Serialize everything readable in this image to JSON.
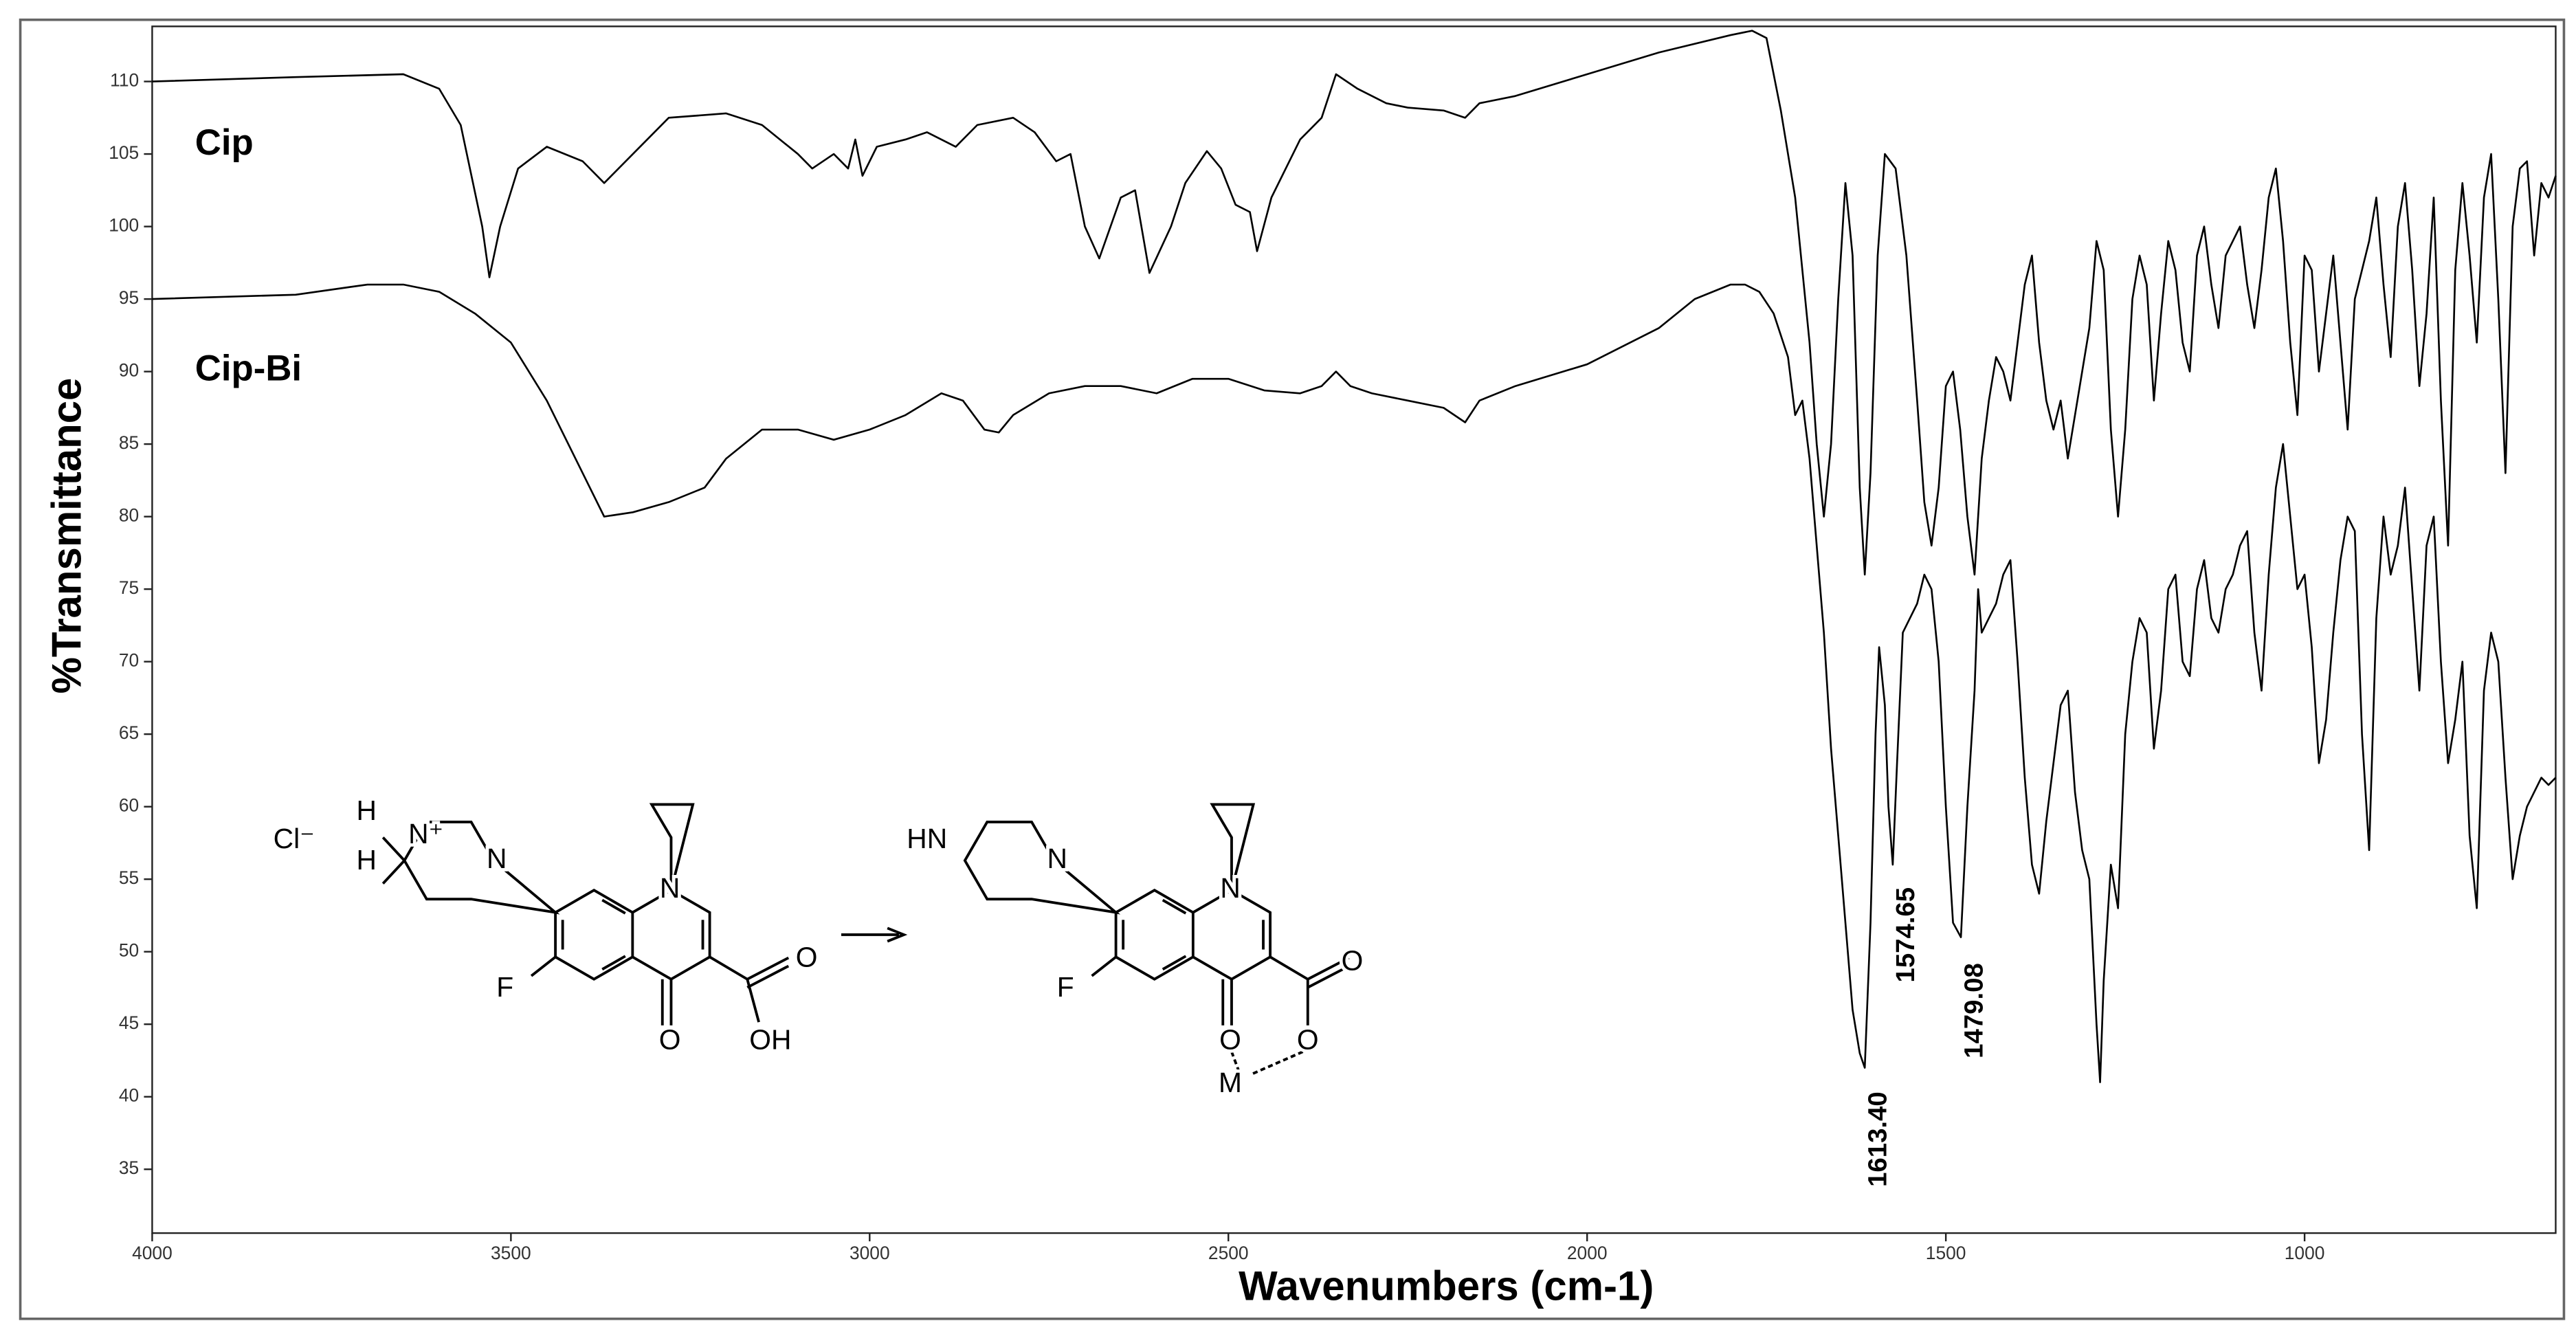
{
  "chart_data": {
    "type": "line",
    "xlabel": "Wavenumbers (cm-1)",
    "ylabel": "%Transmittance",
    "xlim": [
      4000,
      650
    ],
    "ylim": [
      30.6,
      113.8
    ],
    "xticks": [
      4000,
      3500,
      3000,
      2500,
      2000,
      1500,
      1000
    ],
    "yticks": [
      35,
      40,
      45,
      50,
      55,
      60,
      65,
      70,
      75,
      80,
      85,
      90,
      95,
      100,
      105,
      110
    ],
    "series": [
      {
        "name": "Cip",
        "color": "#000000",
        "x": [
          4000,
          3800,
          3650,
          3600,
          3570,
          3540,
          3530,
          3515,
          3490,
          3450,
          3400,
          3370,
          3330,
          3280,
          3200,
          3150,
          3100,
          3080,
          3050,
          3030,
          3020,
          3010,
          2990,
          2950,
          2920,
          2880,
          2850,
          2800,
          2770,
          2740,
          2720,
          2700,
          2680,
          2650,
          2630,
          2610,
          2580,
          2560,
          2530,
          2510,
          2490,
          2470,
          2460,
          2440,
          2400,
          2370,
          2350,
          2320,
          2280,
          2250,
          2200,
          2170,
          2150,
          2100,
          2000,
          1900,
          1800,
          1770,
          1750,
          1730,
          1710,
          1700,
          1690,
          1680,
          1670,
          1660,
          1650,
          1640,
          1630,
          1620,
          1613,
          1605,
          1595,
          1585,
          1570,
          1555,
          1540,
          1530,
          1520,
          1510,
          1500,
          1490,
          1480,
          1470,
          1460,
          1450,
          1440,
          1430,
          1420,
          1410,
          1400,
          1390,
          1380,
          1370,
          1360,
          1350,
          1340,
          1330,
          1320,
          1310,
          1300,
          1290,
          1280,
          1270,
          1260,
          1250,
          1240,
          1230,
          1220,
          1210,
          1200,
          1190,
          1180,
          1170,
          1160,
          1150,
          1140,
          1130,
          1120,
          1110,
          1100,
          1090,
          1080,
          1070,
          1060,
          1050,
          1040,
          1030,
          1020,
          1010,
          1000,
          990,
          980,
          970,
          960,
          950,
          940,
          930,
          920,
          910,
          900,
          890,
          880,
          870,
          860,
          850,
          840,
          830,
          820,
          810,
          800,
          790,
          780,
          770,
          760,
          750,
          740,
          730,
          720,
          710,
          700,
          690,
          680,
          670,
          660,
          650
        ],
        "values": [
          110,
          110.3,
          110.5,
          109.5,
          107,
          100,
          96.5,
          100,
          104,
          105.5,
          104.5,
          103,
          105,
          107.5,
          107.8,
          107,
          105,
          104,
          105,
          104,
          106,
          103.5,
          105.5,
          106,
          106.5,
          105.5,
          107,
          107.5,
          106.5,
          104.5,
          105,
          100,
          97.8,
          102,
          102.5,
          96.8,
          100,
          103,
          105.2,
          104,
          101.5,
          101,
          98.3,
          102,
          106,
          107.5,
          110.5,
          109.5,
          108.5,
          108.2,
          108,
          107.5,
          108.5,
          109,
          110.5,
          112,
          113.2,
          113.5,
          113,
          108,
          102,
          97,
          92,
          85,
          80,
          85,
          95,
          103,
          98,
          82,
          76,
          83,
          98,
          105,
          104,
          98,
          88,
          81,
          78,
          82,
          89,
          90,
          86,
          80,
          76,
          84,
          88,
          91,
          90,
          88,
          92,
          96,
          98,
          92,
          88,
          86,
          88,
          84,
          87,
          90,
          93,
          99,
          97,
          86,
          80,
          86,
          95,
          98,
          96,
          88,
          94,
          99,
          97,
          92,
          90,
          98,
          100,
          96,
          93,
          98,
          99,
          100,
          96,
          93,
          97,
          102,
          104,
          99,
          92,
          87,
          98,
          97,
          90,
          94,
          98,
          92,
          86,
          95,
          97,
          99,
          102,
          96,
          91,
          100,
          103,
          97,
          89,
          94,
          102,
          88,
          78,
          97,
          103,
          98,
          92,
          102,
          105,
          95,
          83,
          100,
          104,
          104.5,
          98,
          103,
          102,
          103.5
        ]
      },
      {
        "name": "Cip-Bi",
        "color": "#000000",
        "x": [
          4000,
          3800,
          3700,
          3650,
          3600,
          3550,
          3500,
          3450,
          3400,
          3370,
          3330,
          3280,
          3230,
          3200,
          3150,
          3100,
          3050,
          3000,
          2950,
          2900,
          2870,
          2840,
          2820,
          2800,
          2750,
          2700,
          2650,
          2600,
          2550,
          2500,
          2450,
          2400,
          2370,
          2350,
          2330,
          2300,
          2250,
          2200,
          2170,
          2150,
          2100,
          2000,
          1900,
          1850,
          1800,
          1780,
          1760,
          1740,
          1720,
          1710,
          1700,
          1690,
          1680,
          1670,
          1660,
          1650,
          1640,
          1630,
          1620,
          1613,
          1605,
          1598,
          1593,
          1585,
          1580,
          1574,
          1568,
          1560,
          1550,
          1540,
          1530,
          1520,
          1510,
          1500,
          1490,
          1479,
          1470,
          1460,
          1455,
          1450,
          1440,
          1430,
          1420,
          1410,
          1400,
          1390,
          1380,
          1370,
          1360,
          1350,
          1340,
          1330,
          1320,
          1310,
          1300,
          1290,
          1285,
          1280,
          1270,
          1260,
          1250,
          1240,
          1230,
          1220,
          1210,
          1200,
          1190,
          1180,
          1170,
          1160,
          1150,
          1140,
          1130,
          1120,
          1110,
          1100,
          1090,
          1080,
          1070,
          1060,
          1050,
          1040,
          1030,
          1020,
          1010,
          1000,
          990,
          980,
          970,
          960,
          950,
          940,
          930,
          920,
          910,
          900,
          890,
          880,
          870,
          860,
          850,
          840,
          830,
          820,
          810,
          800,
          790,
          780,
          770,
          760,
          750,
          740,
          730,
          720,
          710,
          700,
          690,
          680,
          670,
          660,
          650
        ],
        "values": [
          95,
          95.3,
          96,
          96,
          95.5,
          94,
          92,
          88,
          83,
          80,
          80.3,
          81,
          82,
          84,
          86,
          86,
          85.3,
          86,
          87,
          88.5,
          88,
          86,
          85.8,
          87,
          88.5,
          89,
          89,
          88.5,
          89.5,
          89.5,
          88.7,
          88.5,
          89,
          90,
          89,
          88.5,
          88,
          87.5,
          86.5,
          88,
          89,
          90.5,
          93,
          95,
          96,
          96,
          95.5,
          94,
          91,
          87,
          88,
          84,
          78,
          72,
          64,
          58,
          52,
          46,
          43,
          42,
          52,
          65,
          71,
          67,
          60,
          56,
          63,
          72,
          73,
          74,
          76,
          75,
          70,
          60,
          52,
          51,
          60,
          68,
          75,
          72,
          73,
          74,
          76,
          77,
          70,
          62,
          56,
          54,
          59,
          63,
          67,
          68,
          61,
          57,
          55,
          45,
          41,
          48,
          56,
          53,
          65,
          70,
          73,
          72,
          64,
          68,
          75,
          76,
          70,
          69,
          75,
          77,
          73,
          72,
          75,
          76,
          78,
          79,
          72,
          68,
          76,
          82,
          85,
          80,
          75,
          76,
          71,
          63,
          66,
          72,
          77,
          80,
          79,
          65,
          57,
          73,
          80,
          76,
          78,
          82,
          75,
          68,
          78,
          80,
          70,
          63,
          66,
          70,
          58,
          53,
          68,
          72,
          70,
          62,
          55,
          58,
          60,
          61,
          62,
          61.5,
          62
        ]
      }
    ],
    "peak_labels": [
      "1613.40",
      "1574.65",
      "1479.08"
    ],
    "structure": {
      "reactant_labels": [
        "Cl⁻",
        "H",
        "H",
        "N⁺",
        "N",
        "N",
        "F",
        "O",
        "O",
        "OH"
      ],
      "product_labels": [
        "HN",
        "N",
        "N",
        "F",
        "O",
        "O",
        "O",
        "M"
      ]
    }
  }
}
